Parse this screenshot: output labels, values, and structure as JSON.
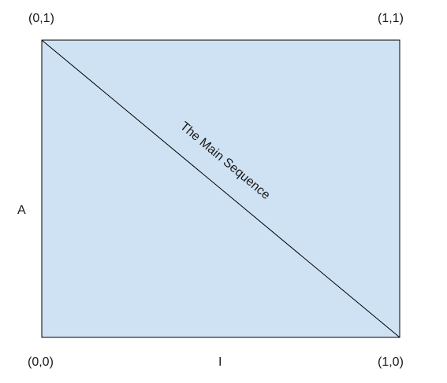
{
  "diagram": {
    "corners": {
      "top_left": "(0,1)",
      "top_right": "(1,1)",
      "bottom_left": "(0,0)",
      "bottom_right": "(1,0)"
    },
    "y_axis_label": "A",
    "x_axis_label": "I",
    "diagonal_label": "The Main Sequence",
    "colors": {
      "fill": "#cfe2f3",
      "stroke": "#000000",
      "text": "#1a1a1a"
    }
  }
}
